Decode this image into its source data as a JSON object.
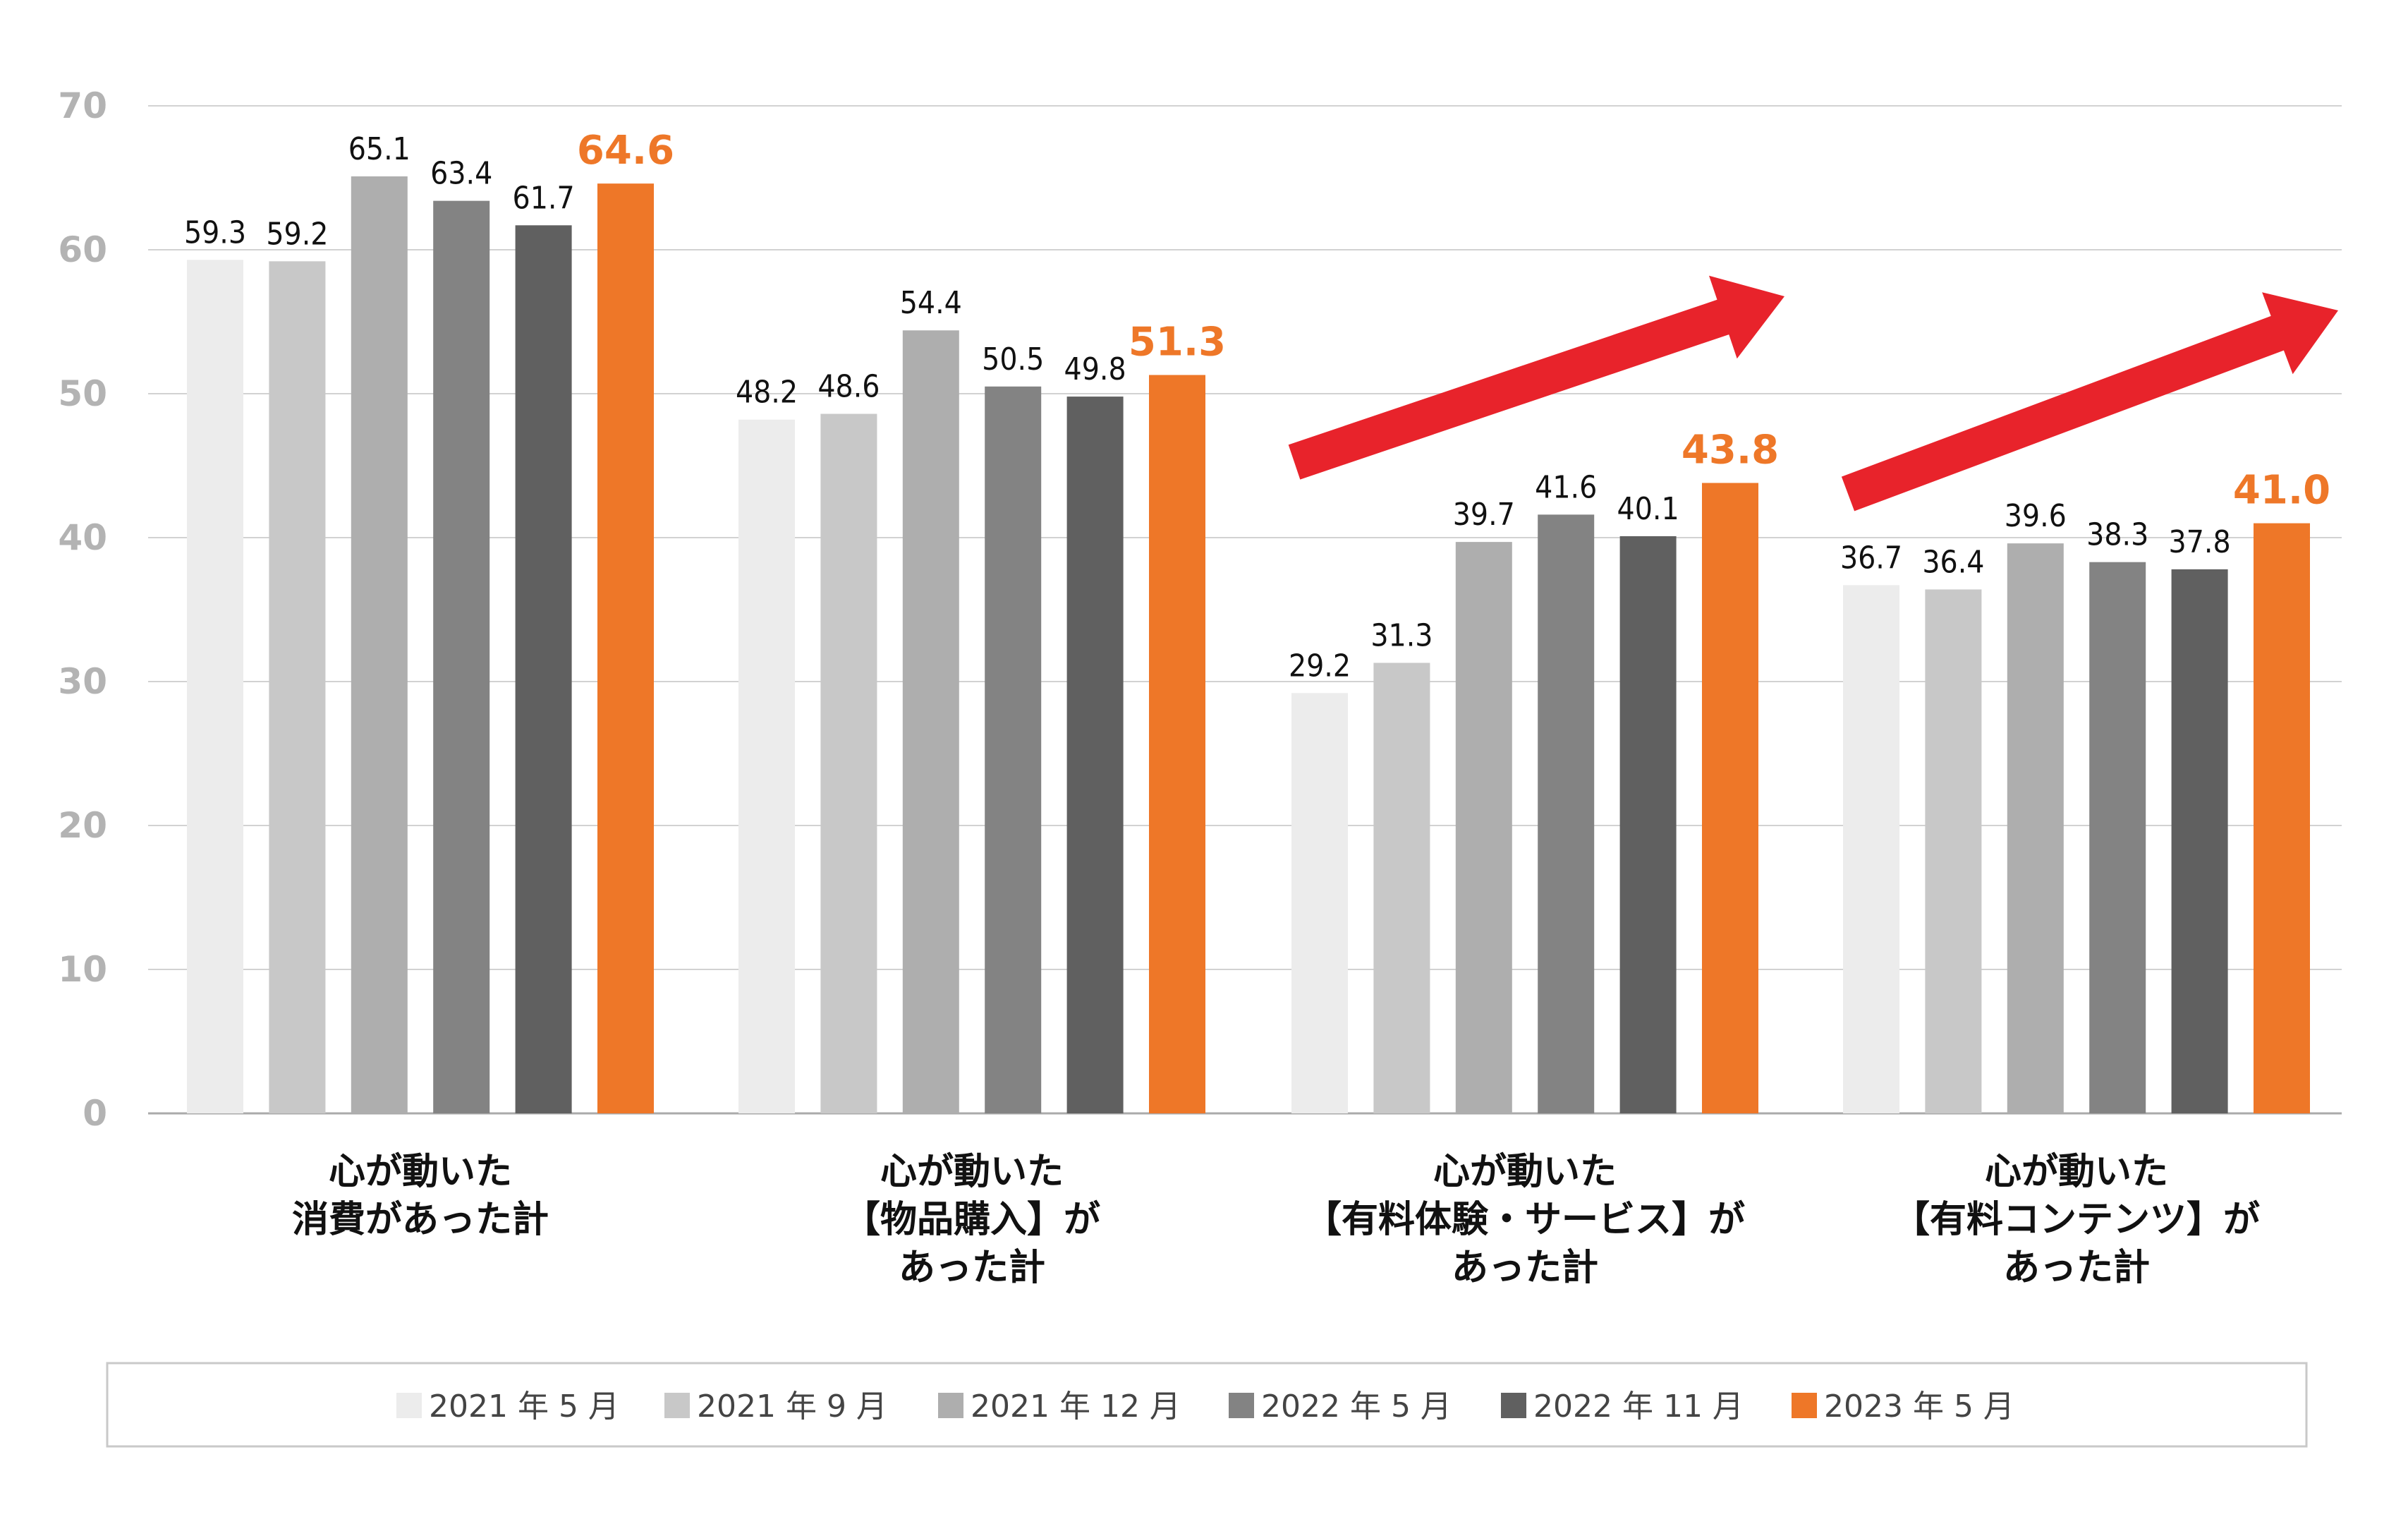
{
  "chart_data": {
    "type": "bar",
    "categories": [
      [
        "心が動いた",
        "消費があった計"
      ],
      [
        "心が動いた",
        "【物品購入】が",
        "あった計"
      ],
      [
        "心が動いた",
        "【有料体験・サービス】が",
        "あった計"
      ],
      [
        "心が動いた",
        "【有料コンテンツ】が",
        "あった計"
      ]
    ],
    "series": [
      {
        "name": "2021 年 5 月",
        "color": "#ececec",
        "values": [
          59.3,
          48.2,
          29.2,
          36.7
        ]
      },
      {
        "name": "2021 年 9 月",
        "color": "#c8c8c8",
        "values": [
          59.2,
          48.6,
          31.3,
          36.4
        ]
      },
      {
        "name": "2021 年 12 月",
        "color": "#aeaeae",
        "values": [
          65.1,
          54.4,
          39.7,
          39.6
        ]
      },
      {
        "name": "2022 年 5 月",
        "color": "#838383",
        "values": [
          63.4,
          50.5,
          41.6,
          38.3
        ]
      },
      {
        "name": "2022 年 11 月",
        "color": "#606060",
        "values": [
          61.7,
          49.8,
          40.1,
          37.8
        ]
      },
      {
        "name": "2023 年 5 月",
        "color": "#ee7728",
        "values": [
          64.6,
          51.3,
          43.8,
          41.0
        ],
        "highlight": true
      }
    ],
    "value_labels": [
      [
        "59.3",
        "48.2",
        "29.2",
        "36.7"
      ],
      [
        "59.2",
        "48.6",
        "31.3",
        "36.4"
      ],
      [
        "65.1",
        "54.4",
        "39.7",
        "39.6"
      ],
      [
        "63.4",
        "50.5",
        "41.6",
        "38.3"
      ],
      [
        "61.7",
        "49.8",
        "40.1",
        "37.8"
      ],
      [
        "64.6",
        "51.3",
        "43.8",
        "41.0"
      ]
    ],
    "yticks": [
      "0",
      "10",
      "20",
      "30",
      "40",
      "50",
      "60",
      "70"
    ],
    "ylim": [
      0,
      70
    ],
    "grid": true,
    "legend": "bottom",
    "annotations": [
      {
        "type": "arrow",
        "direction": "up-right",
        "over_category": 2,
        "color": "#e8232b"
      },
      {
        "type": "arrow",
        "direction": "up-right",
        "over_category": 3,
        "color": "#e8232b"
      }
    ]
  }
}
